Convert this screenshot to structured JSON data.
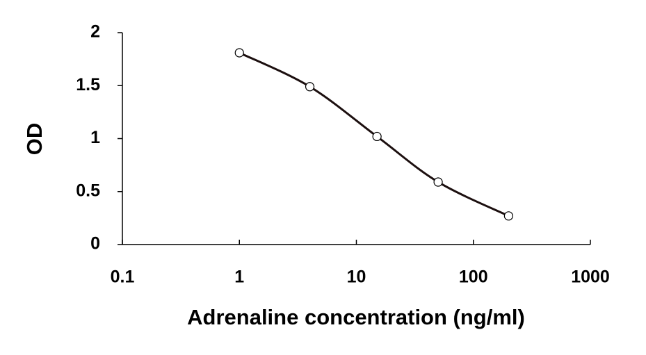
{
  "chart_data": {
    "type": "line",
    "x_label": "Adrenaline concentration (ng/ml)",
    "y_label": "OD",
    "x": [
      1,
      4,
      15,
      50,
      200
    ],
    "series": [
      {
        "color": "#1c0f0f",
        "values": [
          1.81,
          1.49,
          1.02,
          0.59,
          0.27
        ]
      }
    ],
    "log_x": true,
    "smooth": true,
    "markers": true,
    "xlim": [
      0.1,
      1000
    ],
    "xticks": [
      0.1,
      1,
      10,
      100,
      1000
    ],
    "ylim": [
      0,
      2
    ],
    "yticks": [
      0,
      0.5,
      1,
      1.5,
      2
    ]
  }
}
